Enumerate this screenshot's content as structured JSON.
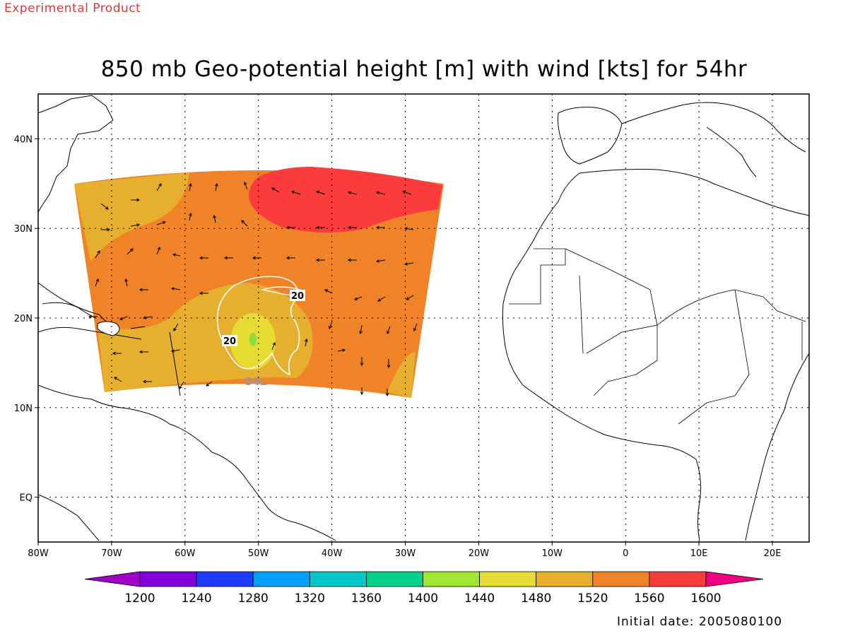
{
  "header": {
    "experimental_label": "Experimental Product",
    "title": "850 mb Geo-potential height [m] with wind [kts] for 54hr",
    "initial_date": "Initial date: 2005080100"
  },
  "map": {
    "lon_ticks": [
      "80W",
      "70W",
      "60W",
      "50W",
      "40W",
      "30W",
      "20W",
      "10W",
      "0",
      "10E",
      "20E"
    ],
    "lat_ticks": [
      "40N",
      "30N",
      "20N",
      "10N",
      "EQ"
    ],
    "lon_range": [
      -80,
      25
    ],
    "lat_range": [
      -5,
      45
    ],
    "contour_labels": [
      "20",
      "20"
    ],
    "storm_label": "94L"
  },
  "colorbar": {
    "labels": [
      "1200",
      "1240",
      "1280",
      "1320",
      "1360",
      "1400",
      "1440",
      "1480",
      "1520",
      "1560",
      "1600"
    ],
    "colors": [
      "#a000c8",
      "#8200dc",
      "#1e3cff",
      "#00a0ff",
      "#00c8c8",
      "#00d28c",
      "#a0e632",
      "#e6dc32",
      "#e6af2d",
      "#f08228",
      "#fa3c3c",
      "#f00082"
    ]
  }
}
